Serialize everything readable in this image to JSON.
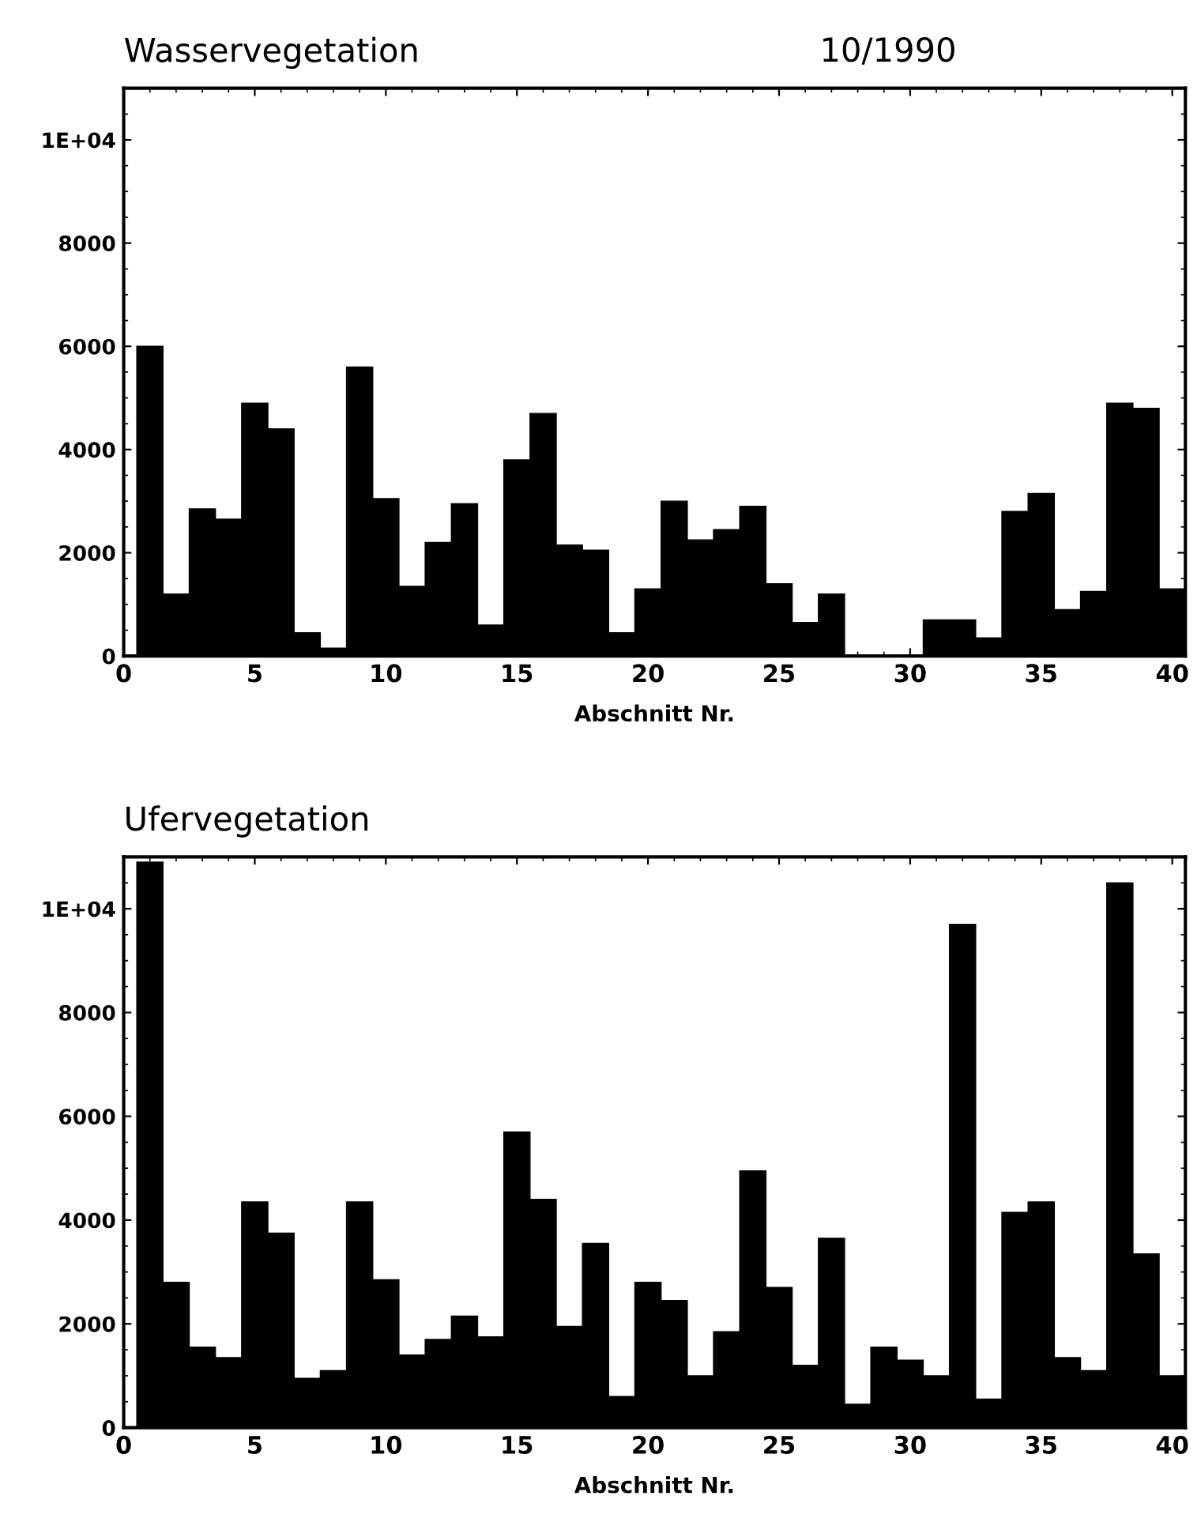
{
  "chart_data": [
    {
      "type": "bar",
      "title": "Wasservegetation",
      "subtitle": "10/1990",
      "xlabel": "Abschnitt Nr.",
      "color": "#000000",
      "x": [
        1,
        2,
        3,
        4,
        5,
        6,
        7,
        8,
        9,
        10,
        11,
        12,
        13,
        14,
        15,
        16,
        17,
        18,
        19,
        20,
        21,
        22,
        23,
        24,
        25,
        26,
        27,
        28,
        29,
        30,
        31,
        32,
        33,
        34,
        35,
        36,
        37,
        38,
        39,
        40
      ],
      "values": [
        6000,
        1200,
        2850,
        2650,
        4900,
        4400,
        450,
        150,
        5600,
        3050,
        1350,
        2200,
        2950,
        600,
        3800,
        4700,
        2150,
        2050,
        450,
        1300,
        3000,
        2250,
        2450,
        2900,
        1400,
        650,
        1200,
        0,
        0,
        0,
        700,
        700,
        350,
        2800,
        3150,
        900,
        1250,
        4900,
        4800,
        1300
      ],
      "xlim": [
        0,
        40.5
      ],
      "xticks": [
        0,
        5,
        10,
        15,
        20,
        25,
        30,
        35,
        40
      ],
      "ylim": [
        0,
        11000
      ],
      "yticks": [
        0,
        2000,
        4000,
        6000,
        8000,
        {
          "value": 10000,
          "label": "1E+04"
        }
      ],
      "grid": false,
      "legend": false
    },
    {
      "type": "bar",
      "title": "Ufervegetation",
      "xlabel": "Abschnitt Nr.",
      "color": "#000000",
      "x": [
        1,
        2,
        3,
        4,
        5,
        6,
        7,
        8,
        9,
        10,
        11,
        12,
        13,
        14,
        15,
        16,
        17,
        18,
        19,
        20,
        21,
        22,
        23,
        24,
        25,
        26,
        27,
        28,
        29,
        30,
        31,
        32,
        33,
        34,
        35,
        36,
        37,
        38,
        39,
        40
      ],
      "values": [
        10900,
        2800,
        1550,
        1350,
        4350,
        3750,
        950,
        1100,
        4350,
        2850,
        1400,
        1700,
        2150,
        1750,
        5700,
        4400,
        1950,
        3550,
        600,
        2800,
        2450,
        1000,
        1850,
        4950,
        2700,
        1200,
        3650,
        450,
        1550,
        1300,
        1000,
        9700,
        550,
        4150,
        4350,
        1350,
        1100,
        10500,
        3350,
        1000
      ],
      "xlim": [
        0,
        40.5
      ],
      "xticks": [
        0,
        5,
        10,
        15,
        20,
        25,
        30,
        35,
        40
      ],
      "ylim": [
        0,
        11000
      ],
      "yticks": [
        0,
        2000,
        4000,
        6000,
        8000,
        {
          "value": 10000,
          "label": "1E+04"
        }
      ],
      "grid": false,
      "legend": false
    }
  ]
}
